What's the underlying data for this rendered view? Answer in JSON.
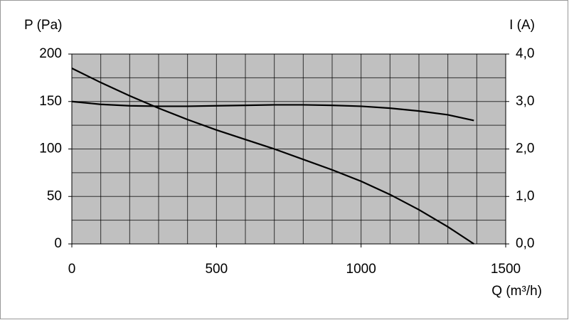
{
  "chart_data": {
    "type": "line",
    "ylabel": "P (Pa)",
    "y2label": "I (A)",
    "xlabel": "Q (m³/h)",
    "xlim": [
      0,
      1500
    ],
    "xticks": [
      0,
      500,
      1000,
      1500
    ],
    "xminorticks": [
      100,
      200,
      300,
      400,
      600,
      700,
      800,
      900,
      1100,
      1200,
      1300,
      1400
    ],
    "ylim": [
      0,
      200
    ],
    "yticks": [
      0,
      50,
      100,
      150,
      200
    ],
    "yminorticks": [
      25,
      75,
      125,
      175
    ],
    "y2lim": [
      0,
      4
    ],
    "y2ticks": [
      {
        "value": 0,
        "label": "0,0"
      },
      {
        "value": 1,
        "label": "1,0"
      },
      {
        "value": 2,
        "label": "2,0"
      },
      {
        "value": 3,
        "label": "3,0"
      },
      {
        "value": 4,
        "label": "4,0"
      }
    ],
    "grid": true,
    "background": "#c0c0c0",
    "series": [
      {
        "color": "#000000",
        "x": [
          0,
          100,
          200,
          300,
          400,
          500,
          600,
          700,
          800,
          900,
          1000,
          1100,
          1200,
          1300,
          1390
        ],
        "values": [
          185,
          170,
          156,
          143,
          131,
          120,
          110,
          100,
          89,
          78,
          66,
          52,
          36,
          18,
          0
        ]
      },
      {
        "color": "#000000",
        "axis": "y2",
        "x": [
          0,
          100,
          200,
          300,
          400,
          500,
          600,
          700,
          800,
          900,
          1000,
          1100,
          1200,
          1300,
          1390
        ],
        "values": [
          3.0,
          2.94,
          2.91,
          2.9,
          2.9,
          2.91,
          2.92,
          2.93,
          2.93,
          2.92,
          2.9,
          2.86,
          2.8,
          2.72,
          2.6
        ]
      }
    ]
  }
}
